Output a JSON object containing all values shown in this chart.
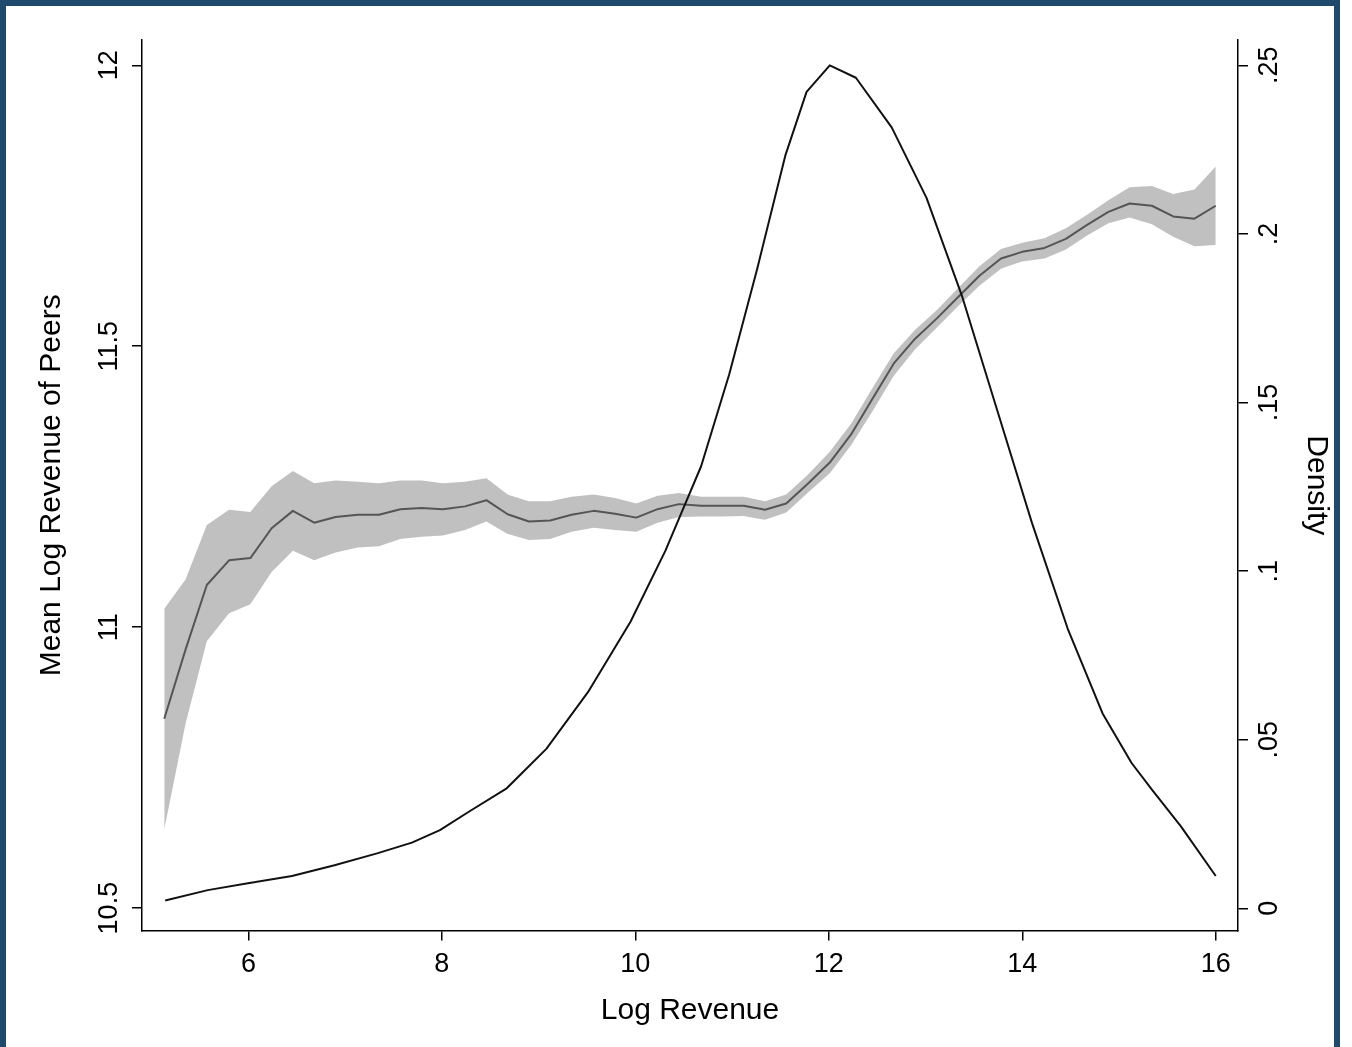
{
  "chart_data": {
    "type": "line",
    "xlabel": "Log Revenue",
    "ylabel": "Mean Log Revenue of Peers",
    "y2label": "Density",
    "xlim": [
      4.9,
      16.23
    ],
    "xticks": [
      6,
      8,
      10,
      12,
      14,
      16
    ],
    "ylim": [
      10.46,
      12.045
    ],
    "yticks": [
      10.5,
      11,
      11.5,
      12
    ],
    "y2lim": [
      -0.0066,
      0.2575
    ],
    "y2ticks": [
      0,
      {
        "value": 0.05,
        "label": ".05"
      },
      {
        "value": 0.1,
        "label": ".1"
      },
      {
        "value": 0.15,
        "label": ".15"
      },
      {
        "value": 0.2,
        "label": ".2"
      },
      {
        "value": 0.25,
        "label": ".25"
      }
    ],
    "grid": false,
    "legend": false,
    "marker": "none",
    "line_style": "solid",
    "series": [
      {
        "type": "line",
        "color": "#555555",
        "x": [
          5.13,
          5.35,
          5.57,
          5.8,
          6.02,
          6.24,
          6.46,
          6.68,
          6.9,
          7.13,
          7.35,
          7.57,
          7.79,
          8.01,
          8.24,
          8.46,
          8.68,
          8.9,
          9.12,
          9.34,
          9.57,
          9.79,
          10.01,
          10.23,
          10.45,
          10.68,
          10.9,
          11.12,
          11.34,
          11.56,
          11.78,
          12.01,
          12.23,
          12.45,
          12.67,
          12.89,
          13.12,
          13.34,
          13.56,
          13.78,
          14.0,
          14.23,
          14.45,
          14.67,
          14.89,
          15.11,
          15.34,
          15.56,
          15.78,
          16.0
        ],
        "values": [
          10.837,
          10.96,
          11.075,
          11.119,
          11.123,
          11.176,
          11.207,
          11.186,
          11.196,
          11.2,
          11.2,
          11.21,
          11.212,
          11.21,
          11.215,
          11.226,
          11.201,
          11.188,
          11.19,
          11.2,
          11.207,
          11.202,
          11.195,
          11.21,
          11.219,
          11.216,
          11.216,
          11.216,
          11.209,
          11.22,
          11.255,
          11.293,
          11.343,
          11.406,
          11.469,
          11.513,
          11.55,
          11.588,
          11.626,
          11.656,
          11.668,
          11.675,
          11.691,
          11.716,
          11.739,
          11.754,
          11.75,
          11.731,
          11.727,
          11.75
        ],
        "lower": [
          10.64,
          10.828,
          10.975,
          11.025,
          11.041,
          11.098,
          11.136,
          11.119,
          11.133,
          11.142,
          11.144,
          11.157,
          11.161,
          11.163,
          11.173,
          11.188,
          11.166,
          11.155,
          11.157,
          11.17,
          11.177,
          11.173,
          11.17,
          11.186,
          11.196,
          11.197,
          11.197,
          11.198,
          11.191,
          11.204,
          11.239,
          11.274,
          11.324,
          11.384,
          11.447,
          11.494,
          11.534,
          11.572,
          11.608,
          11.638,
          11.651,
          11.656,
          11.672,
          11.697,
          11.719,
          11.729,
          11.717,
          11.695,
          11.678,
          11.68
        ],
        "upper": [
          11.033,
          11.085,
          11.182,
          11.209,
          11.205,
          11.251,
          11.278,
          11.256,
          11.261,
          11.259,
          11.256,
          11.261,
          11.261,
          11.256,
          11.259,
          11.265,
          11.236,
          11.224,
          11.224,
          11.232,
          11.236,
          11.23,
          11.22,
          11.234,
          11.239,
          11.232,
          11.232,
          11.232,
          11.224,
          11.236,
          11.271,
          11.312,
          11.362,
          11.425,
          11.487,
          11.529,
          11.565,
          11.604,
          11.643,
          11.673,
          11.684,
          11.692,
          11.71,
          11.734,
          11.76,
          11.783,
          11.785,
          11.771,
          11.779,
          11.82
        ]
      },
      {
        "type": "line",
        "axis": "y2",
        "color": "#111111",
        "x": [
          5.14,
          5.58,
          6.01,
          6.45,
          6.89,
          7.33,
          7.69,
          7.98,
          8.27,
          8.67,
          9.08,
          9.51,
          9.95,
          10.31,
          10.68,
          10.97,
          11.26,
          11.55,
          11.77,
          12.01,
          12.28,
          12.65,
          13.01,
          13.38,
          13.74,
          14.1,
          14.47,
          14.83,
          15.13,
          15.34,
          15.64,
          16.0
        ],
        "values": [
          0.0023,
          0.0054,
          0.0075,
          0.0096,
          0.0128,
          0.0163,
          0.0195,
          0.0232,
          0.0285,
          0.0356,
          0.0473,
          0.0641,
          0.085,
          0.106,
          0.1311,
          0.1583,
          0.1897,
          0.2232,
          0.2421,
          0.25,
          0.2463,
          0.2316,
          0.2107,
          0.1813,
          0.1478,
          0.1143,
          0.0829,
          0.0578,
          0.0431,
          0.0352,
          0.0243,
          0.0096
        ]
      }
    ]
  }
}
